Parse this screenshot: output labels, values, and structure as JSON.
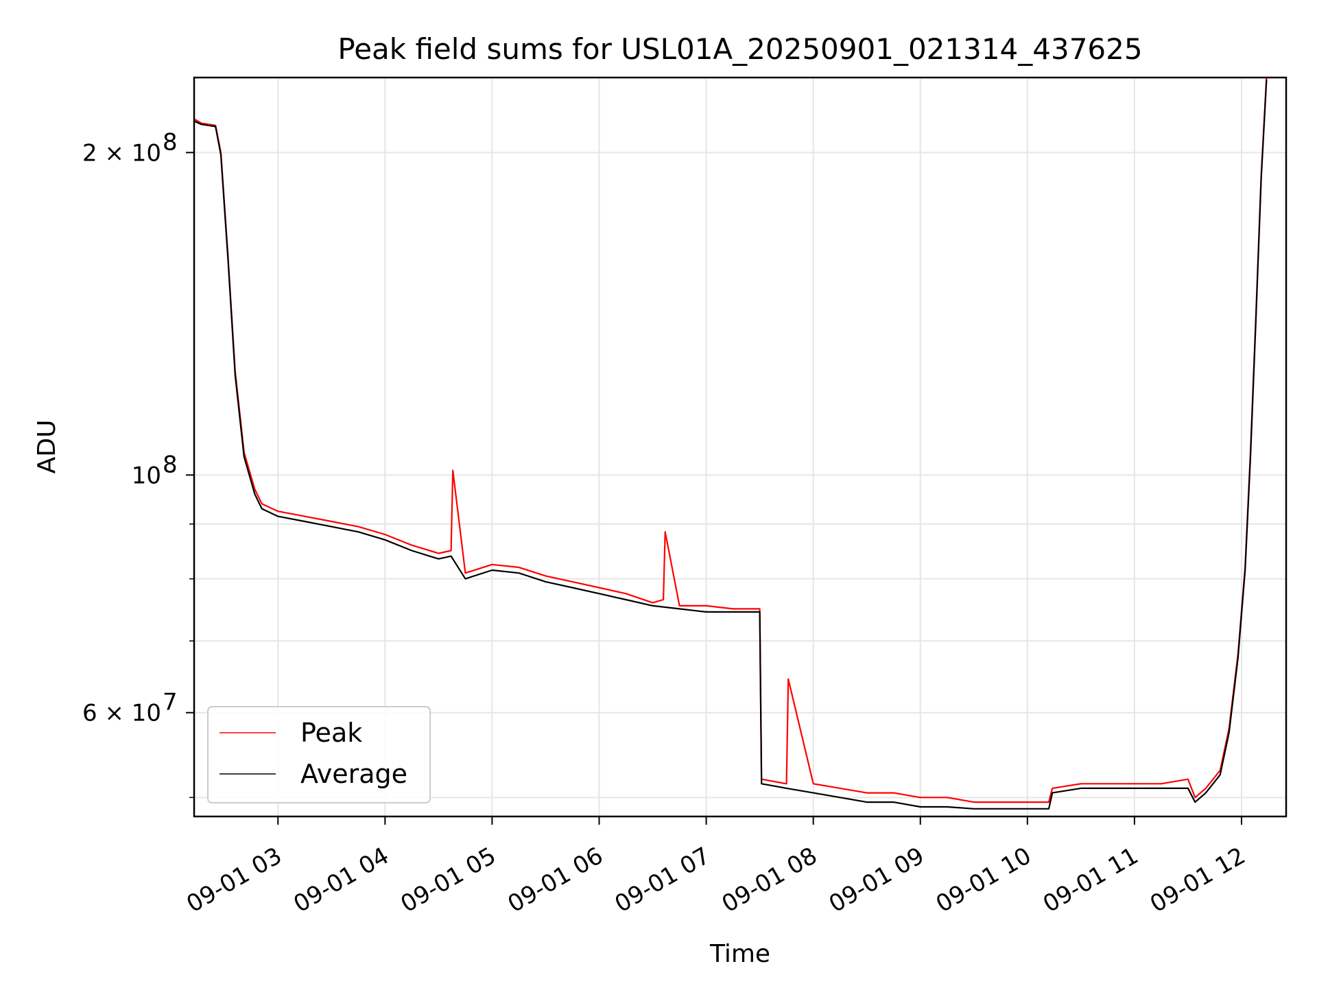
{
  "chart_data": {
    "type": "line",
    "title": "Peak field sums for USL01A_20250901_021314_437625",
    "xlabel": "Time",
    "ylabel": "ADU",
    "y_scale": "log",
    "ylim": [
      48000000,
      235000000
    ],
    "xlim": [
      "2025-09-01 02:13",
      "2025-09-01 12:25"
    ],
    "grid": true,
    "legend_position": "lower-left",
    "x_ticks": [
      {
        "value": "2025-09-01 03:00",
        "label": "09-01 03"
      },
      {
        "value": "2025-09-01 04:00",
        "label": "09-01 04"
      },
      {
        "value": "2025-09-01 05:00",
        "label": "09-01 05"
      },
      {
        "value": "2025-09-01 06:00",
        "label": "09-01 06"
      },
      {
        "value": "2025-09-01 07:00",
        "label": "09-01 07"
      },
      {
        "value": "2025-09-01 08:00",
        "label": "09-01 08"
      },
      {
        "value": "2025-09-01 09:00",
        "label": "09-01 09"
      },
      {
        "value": "2025-09-01 10:00",
        "label": "09-01 10"
      },
      {
        "value": "2025-09-01 11:00",
        "label": "09-01 11"
      },
      {
        "value": "2025-09-01 12:00",
        "label": "09-01 12"
      }
    ],
    "y_major_ticks": [
      {
        "value": 100000000,
        "label_base": "10",
        "label_exp": "8"
      },
      {
        "value": 200000000,
        "label_base": "2 × 10",
        "label_exp": "8"
      },
      {
        "value": 60000000,
        "label_base": "6 × 10",
        "label_exp": "7"
      }
    ],
    "y_minor_ticks": [
      50000000,
      70000000,
      80000000,
      90000000,
      300000000
    ],
    "series": [
      {
        "name": "Peak",
        "color": "#ff0000",
        "x": [
          "2025-09-01 02:13",
          "2025-09-01 02:17",
          "2025-09-01 02:25",
          "2025-09-01 02:28",
          "2025-09-01 02:32",
          "2025-09-01 02:36",
          "2025-09-01 02:41",
          "2025-09-01 02:47",
          "2025-09-01 02:51",
          "2025-09-01 03:00",
          "2025-09-01 03:15",
          "2025-09-01 03:30",
          "2025-09-01 03:45",
          "2025-09-01 04:00",
          "2025-09-01 04:15",
          "2025-09-01 04:30",
          "2025-09-01 04:37",
          "2025-09-01 04:38",
          "2025-09-01 04:45",
          "2025-09-01 05:00",
          "2025-09-01 05:15",
          "2025-09-01 05:30",
          "2025-09-01 05:45",
          "2025-09-01 06:00",
          "2025-09-01 06:15",
          "2025-09-01 06:30",
          "2025-09-01 06:36",
          "2025-09-01 06:37",
          "2025-09-01 06:45",
          "2025-09-01 07:00",
          "2025-09-01 07:15",
          "2025-09-01 07:30",
          "2025-09-01 07:31",
          "2025-09-01 07:45",
          "2025-09-01 07:46",
          "2025-09-01 08:00",
          "2025-09-01 08:15",
          "2025-09-01 08:30",
          "2025-09-01 08:45",
          "2025-09-01 09:00",
          "2025-09-01 09:15",
          "2025-09-01 09:30",
          "2025-09-01 09:45",
          "2025-09-01 10:00",
          "2025-09-01 10:12",
          "2025-09-01 10:14",
          "2025-09-01 10:30",
          "2025-09-01 10:45",
          "2025-09-01 11:00",
          "2025-09-01 11:15",
          "2025-09-01 11:30",
          "2025-09-01 11:34",
          "2025-09-01 11:40",
          "2025-09-01 11:48",
          "2025-09-01 11:53",
          "2025-09-01 11:58",
          "2025-09-01 12:02",
          "2025-09-01 12:05",
          "2025-09-01 12:08",
          "2025-09-01 12:11",
          "2025-09-01 12:14"
        ],
        "y": [
          215000000,
          213000000,
          212000000,
          200000000,
          160000000,
          125000000,
          105000000,
          97000000,
          94000000,
          92500000,
          91500000,
          90500000,
          89500000,
          88000000,
          86000000,
          84500000,
          85000000,
          101000000,
          81000000,
          82500000,
          82000000,
          80500000,
          79500000,
          78500000,
          77500000,
          76000000,
          76500000,
          88500000,
          75500000,
          75500000,
          75000000,
          75000000,
          52000000,
          51500000,
          64500000,
          51500000,
          51000000,
          50500000,
          50500000,
          50000000,
          50000000,
          49500000,
          49500000,
          49500000,
          49500000,
          51000000,
          51500000,
          51500000,
          51500000,
          51500000,
          52000000,
          50000000,
          51000000,
          53000000,
          58000000,
          68000000,
          82000000,
          105000000,
          140000000,
          190000000,
          235000000
        ]
      },
      {
        "name": "Average",
        "color": "#000000",
        "x": [
          "2025-09-01 02:13",
          "2025-09-01 02:17",
          "2025-09-01 02:25",
          "2025-09-01 02:28",
          "2025-09-01 02:32",
          "2025-09-01 02:36",
          "2025-09-01 02:41",
          "2025-09-01 02:47",
          "2025-09-01 02:51",
          "2025-09-01 03:00",
          "2025-09-01 03:15",
          "2025-09-01 03:30",
          "2025-09-01 03:45",
          "2025-09-01 04:00",
          "2025-09-01 04:15",
          "2025-09-01 04:30",
          "2025-09-01 04:37",
          "2025-09-01 04:45",
          "2025-09-01 05:00",
          "2025-09-01 05:15",
          "2025-09-01 05:30",
          "2025-09-01 05:45",
          "2025-09-01 06:00",
          "2025-09-01 06:15",
          "2025-09-01 06:30",
          "2025-09-01 06:45",
          "2025-09-01 07:00",
          "2025-09-01 07:15",
          "2025-09-01 07:30",
          "2025-09-01 07:31",
          "2025-09-01 07:45",
          "2025-09-01 08:00",
          "2025-09-01 08:15",
          "2025-09-01 08:30",
          "2025-09-01 08:45",
          "2025-09-01 09:00",
          "2025-09-01 09:15",
          "2025-09-01 09:30",
          "2025-09-01 09:45",
          "2025-09-01 10:00",
          "2025-09-01 10:12",
          "2025-09-01 10:14",
          "2025-09-01 10:30",
          "2025-09-01 10:45",
          "2025-09-01 11:00",
          "2025-09-01 11:15",
          "2025-09-01 11:30",
          "2025-09-01 11:34",
          "2025-09-01 11:40",
          "2025-09-01 11:48",
          "2025-09-01 11:53",
          "2025-09-01 11:58",
          "2025-09-01 12:02",
          "2025-09-01 12:05",
          "2025-09-01 12:08",
          "2025-09-01 12:11",
          "2025-09-01 12:14"
        ],
        "y": [
          214000000,
          212500000,
          211500000,
          199000000,
          159000000,
          124000000,
          104000000,
          96000000,
          93000000,
          91500000,
          90500000,
          89500000,
          88500000,
          87000000,
          85000000,
          83500000,
          84000000,
          80000000,
          81500000,
          81000000,
          79500000,
          78500000,
          77500000,
          76500000,
          75500000,
          75000000,
          74500000,
          74500000,
          74500000,
          51500000,
          51000000,
          50500000,
          50000000,
          49500000,
          49500000,
          49000000,
          49000000,
          48800000,
          48800000,
          48800000,
          48800000,
          50500000,
          51000000,
          51000000,
          51000000,
          51000000,
          51000000,
          49500000,
          50500000,
          52500000,
          57500000,
          67500000,
          81500000,
          104000000,
          139000000,
          189000000,
          234000000
        ]
      }
    ]
  }
}
